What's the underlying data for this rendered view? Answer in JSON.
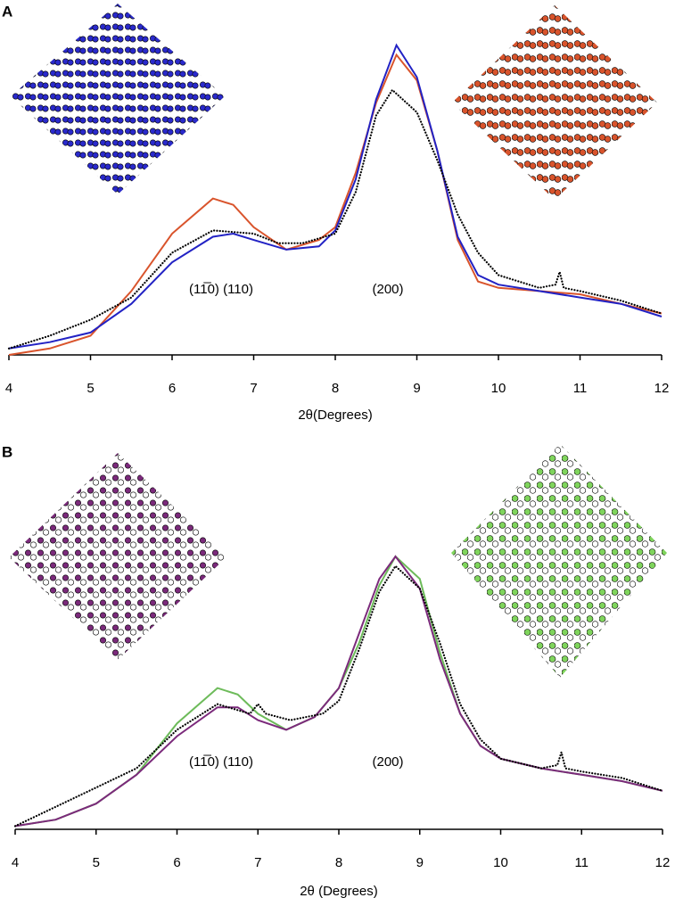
{
  "chart_data": [
    {
      "type": "line",
      "panel": "A",
      "xlabel": "2θ(Degrees)",
      "xlim": [
        4,
        12
      ],
      "xticks": [
        4,
        5,
        6,
        7,
        8,
        9,
        10,
        11,
        12
      ],
      "ylim": [
        0,
        100
      ],
      "annotations": [
        "(11̅0) (110)",
        "(200)"
      ],
      "series": [
        {
          "color": "#d9542c",
          "style": "solid",
          "x": [
            4,
            4.5,
            5,
            5.5,
            6,
            6.5,
            6.75,
            7,
            7.4,
            7.8,
            8,
            8.25,
            8.5,
            8.75,
            9,
            9.25,
            9.5,
            9.75,
            10,
            10.5,
            11,
            11.5,
            12
          ],
          "values": [
            0,
            2,
            6,
            20,
            38,
            49,
            47,
            40,
            33,
            36,
            40,
            57,
            79,
            94,
            86,
            64,
            36,
            23,
            21,
            20,
            19,
            16,
            13
          ]
        },
        {
          "color": "#2222c4",
          "style": "solid",
          "x": [
            4,
            4.5,
            5,
            5.5,
            6,
            6.5,
            6.75,
            7,
            7.4,
            7.8,
            8,
            8.25,
            8.5,
            8.75,
            9,
            9.25,
            9.5,
            9.75,
            10,
            10.5,
            11,
            11.5,
            12
          ],
          "values": [
            2,
            4,
            7,
            16,
            29,
            37,
            38,
            36,
            33,
            34,
            39,
            55,
            80,
            97,
            87,
            64,
            37,
            25,
            22,
            20,
            18,
            16,
            12
          ]
        },
        {
          "color": "#000000",
          "style": "dotted",
          "x": [
            4,
            4.5,
            5,
            5.5,
            6,
            6.5,
            7,
            7.3,
            7.6,
            8,
            8.25,
            8.5,
            8.7,
            9,
            9.25,
            9.5,
            9.75,
            10,
            10.5,
            10.7,
            10.75,
            10.8,
            11,
            11.5,
            12
          ],
          "values": [
            2,
            6,
            11,
            18,
            32,
            39,
            38,
            35,
            35,
            38,
            51,
            75,
            83,
            76,
            61,
            44,
            32,
            25,
            21,
            22,
            26,
            21,
            20,
            17,
            13
          ]
        }
      ]
    },
    {
      "type": "line",
      "panel": "B",
      "xlabel": "2θ (Degrees)",
      "xlim": [
        4,
        12
      ],
      "xticks": [
        4,
        5,
        6,
        7,
        8,
        9,
        10,
        11,
        12
      ],
      "ylim": [
        0,
        100
      ],
      "annotations": [
        "(11̅0) (110)",
        "(200)"
      ],
      "series": [
        {
          "color": "#6dbb5a",
          "style": "solid",
          "x": [
            4,
            4.5,
            5,
            5.5,
            6,
            6.5,
            6.75,
            7,
            7.35,
            7.7,
            8,
            8.25,
            8.5,
            8.7,
            9,
            9.25,
            9.5,
            9.75,
            10,
            10.5,
            11,
            11.5,
            12
          ],
          "values": [
            1,
            3,
            8,
            17,
            33,
            44,
            42,
            36,
            31,
            35,
            44,
            58,
            76,
            85,
            78,
            55,
            36,
            26,
            22,
            19,
            17,
            15,
            12
          ]
        },
        {
          "color": "#7b2a7b",
          "style": "solid",
          "x": [
            4,
            4.5,
            5,
            5.5,
            6,
            6.5,
            6.75,
            7,
            7.35,
            7.7,
            8,
            8.25,
            8.5,
            8.7,
            9,
            9.25,
            9.5,
            9.75,
            10,
            10.5,
            11,
            11.5,
            12
          ],
          "values": [
            1,
            3,
            8,
            17,
            29,
            38,
            38,
            34,
            31,
            35,
            44,
            61,
            78,
            85,
            75,
            53,
            36,
            26,
            22,
            19,
            17,
            15,
            12
          ]
        },
        {
          "color": "#000000",
          "style": "dotted",
          "x": [
            4,
            4.5,
            5,
            5.5,
            6,
            6.5,
            6.9,
            7,
            7.1,
            7.4,
            7.8,
            8,
            8.25,
            8.5,
            8.7,
            9,
            9.25,
            9.5,
            9.75,
            10,
            10.5,
            10.7,
            10.75,
            10.8,
            11,
            11.5,
            12
          ],
          "values": [
            1,
            7,
            13,
            19,
            31,
            39,
            36,
            39,
            36,
            34,
            36,
            40,
            56,
            74,
            82,
            75,
            58,
            39,
            28,
            22,
            19,
            20,
            24,
            19,
            18,
            16,
            12
          ]
        }
      ]
    }
  ]
}
